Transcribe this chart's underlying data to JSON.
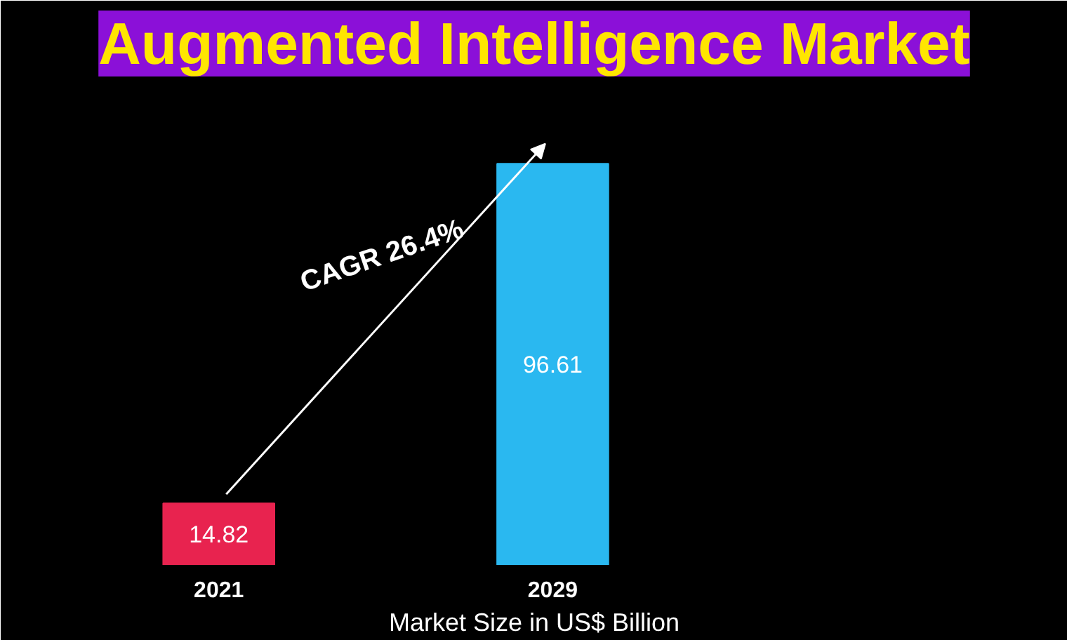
{
  "chart_data": {
    "type": "bar",
    "title": "Augmented Intelligence Market",
    "xlabel": "Market Size in US$ Billion",
    "categories": [
      "2021",
      "2029"
    ],
    "values": [
      14.82,
      96.61
    ],
    "colors": [
      "#e8234f",
      "#2ab8f0"
    ],
    "data_labels": true,
    "annotations": [
      "CAGR  26.4%"
    ]
  }
}
